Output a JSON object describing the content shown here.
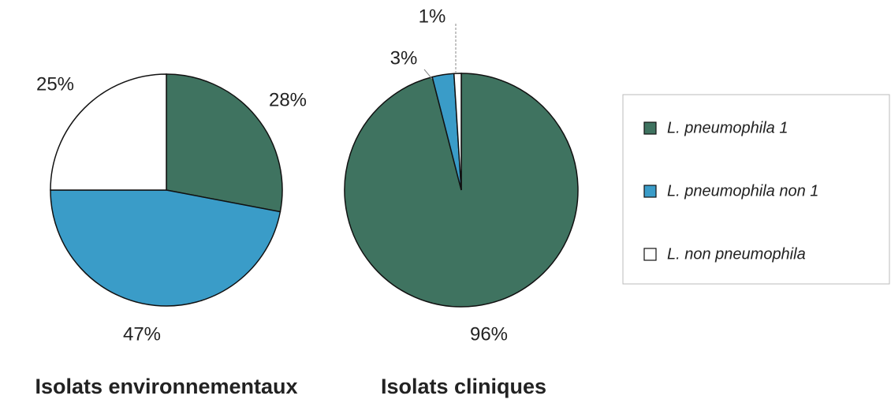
{
  "chart_data": [
    {
      "type": "pie",
      "title": "Isolats environnementaux",
      "values": [
        28,
        47,
        25
      ],
      "value_labels": [
        "28%",
        "47%",
        "25%"
      ]
    },
    {
      "type": "pie",
      "title": "Isolats cliniques",
      "values": [
        96,
        3,
        1
      ],
      "value_labels": [
        "96%",
        "3%",
        "1%"
      ]
    }
  ],
  "legend": {
    "labels": [
      "L. pneumophila 1",
      "L. pneumophila non 1",
      "L. non pneumophila"
    ],
    "colors": [
      "#3f7360",
      "#3a9cc8",
      "#ffffff"
    ]
  }
}
